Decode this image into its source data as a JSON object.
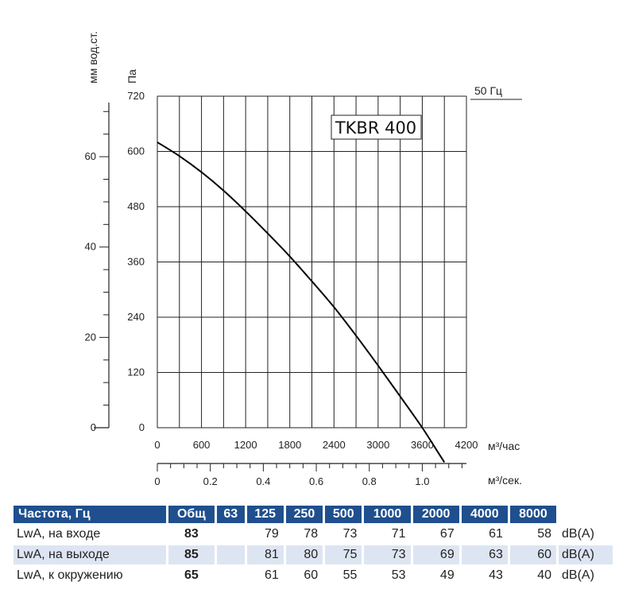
{
  "chart_data": {
    "type": "line",
    "model_label": "TKBR 400",
    "frequency_label": "50 Гц",
    "x_primary": {
      "unit_label": "м³/час",
      "ticks": [
        0,
        600,
        1200,
        1800,
        2400,
        3000,
        3600,
        4200
      ],
      "range": [
        0,
        4200
      ]
    },
    "x_secondary": {
      "unit_label": "м³/сек.",
      "ticks": [
        "0",
        "0.2",
        "0.4",
        "0.6",
        "0.8",
        "1.0"
      ],
      "tick_values": [
        0,
        0.2,
        0.4,
        0.6,
        0.8,
        1.0
      ]
    },
    "y_primary": {
      "unit_label": "Па",
      "ticks": [
        0,
        120,
        240,
        360,
        480,
        600,
        720
      ],
      "range": [
        0,
        720
      ]
    },
    "y_secondary": {
      "unit_label": "мм вод.ст.",
      "ticks": [
        0,
        20,
        40,
        60
      ],
      "scale_pa_per_unit": 9.81
    },
    "grid": true,
    "series": [
      {
        "x": [
          0,
          300,
          600,
          900,
          1200,
          1500,
          1800,
          2100,
          2400,
          2700,
          3000,
          3300,
          3600,
          3800,
          3900
        ],
        "y": [
          620,
          590,
          555,
          515,
          470,
          422,
          372,
          318,
          262,
          200,
          135,
          68,
          0,
          -50,
          -75
        ]
      }
    ]
  },
  "noise_table": {
    "header": {
      "label": "Частота, Гц",
      "total": "Общ",
      "bands": [
        "63",
        "125",
        "250",
        "500",
        "1000",
        "2000",
        "4000",
        "8000"
      ]
    },
    "rows": [
      {
        "label": "LwA, на входе",
        "total": "83",
        "values": [
          "",
          "79",
          "78",
          "73",
          "71",
          "67",
          "61",
          "58"
        ],
        "unit": "dB(A)"
      },
      {
        "label": "LwA, на выходе",
        "total": "85",
        "values": [
          "",
          "81",
          "80",
          "75",
          "73",
          "69",
          "63",
          "60"
        ],
        "unit": "dB(A)"
      },
      {
        "label": "LwA, к окружению",
        "total": "65",
        "values": [
          "",
          "61",
          "60",
          "55",
          "53",
          "49",
          "43",
          "40"
        ],
        "unit": "dB(A)"
      }
    ]
  }
}
